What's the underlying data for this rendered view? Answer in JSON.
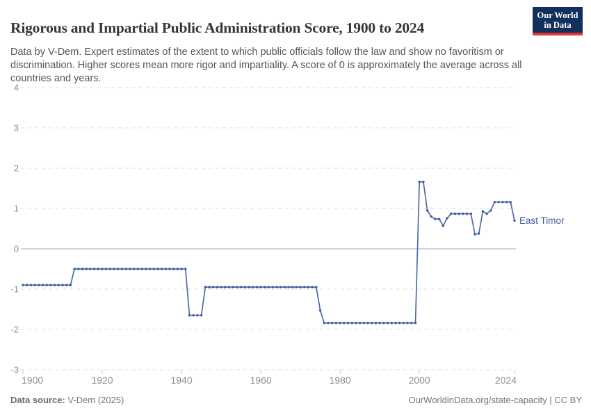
{
  "header": {
    "title": "Rigorous and Impartial Public Administration Score, 1900 to 2024",
    "subtitle": "Data by V-Dem. Expert estimates of the extent to which public officials follow the law and show no favoritism or discrimination. Higher scores mean more rigor and impartiality. A score of 0 is approximately the average across all countries and years.",
    "logo": {
      "line1": "Our World",
      "line2": "in Data",
      "bg_color": "#12305c",
      "accent_color": "#e0362c"
    }
  },
  "chart_data": {
    "type": "line",
    "title": "Rigorous and Impartial Public Administration Score, 1900 to 2024",
    "xlabel": "",
    "ylabel": "",
    "xlim": [
      1900,
      2024
    ],
    "ylim": [
      -3,
      4
    ],
    "x_ticks": [
      1900,
      1920,
      1940,
      1960,
      1980,
      2000,
      2024
    ],
    "y_ticks": [
      4,
      3,
      2,
      1,
      0,
      -1,
      -2,
      -3
    ],
    "grid": true,
    "legend_position": "end-of-line-label",
    "series": [
      {
        "name": "East Timor",
        "start_year": 1900,
        "values": [
          -0.9,
          -0.9,
          -0.9,
          -0.9,
          -0.9,
          -0.9,
          -0.9,
          -0.9,
          -0.9,
          -0.9,
          -0.9,
          -0.9,
          -0.9,
          -0.5,
          -0.5,
          -0.5,
          -0.5,
          -0.5,
          -0.5,
          -0.5,
          -0.5,
          -0.5,
          -0.5,
          -0.5,
          -0.5,
          -0.5,
          -0.5,
          -0.5,
          -0.5,
          -0.5,
          -0.5,
          -0.5,
          -0.5,
          -0.5,
          -0.5,
          -0.5,
          -0.5,
          -0.5,
          -0.5,
          -0.5,
          -0.5,
          -0.5,
          -1.65,
          -1.65,
          -1.65,
          -1.65,
          -0.95,
          -0.95,
          -0.95,
          -0.95,
          -0.95,
          -0.95,
          -0.95,
          -0.95,
          -0.95,
          -0.95,
          -0.95,
          -0.95,
          -0.95,
          -0.95,
          -0.95,
          -0.95,
          -0.95,
          -0.95,
          -0.95,
          -0.95,
          -0.95,
          -0.95,
          -0.95,
          -0.95,
          -0.95,
          -0.95,
          -0.95,
          -0.95,
          -0.95,
          -1.53,
          -1.84,
          -1.84,
          -1.84,
          -1.84,
          -1.84,
          -1.84,
          -1.84,
          -1.84,
          -1.84,
          -1.84,
          -1.84,
          -1.84,
          -1.84,
          -1.84,
          -1.84,
          -1.84,
          -1.84,
          -1.84,
          -1.84,
          -1.84,
          -1.84,
          -1.84,
          -1.84,
          -1.84,
          1.66,
          1.66,
          0.95,
          0.8,
          0.74,
          0.74,
          0.57,
          0.76,
          0.87,
          0.87,
          0.87,
          0.87,
          0.87,
          0.87,
          0.36,
          0.38,
          0.93,
          0.87,
          0.95,
          1.16,
          1.16,
          1.16,
          1.16,
          1.16,
          0.7
        ]
      }
    ],
    "style": {
      "line_color": "#4d6bac",
      "marker_color": "#3a5c9e",
      "entity_label_color": "#3d5c9b",
      "grid_color": "#dcdcdc",
      "zero_line_color": "#a8a8a8",
      "tick_label_color": "#8e8e8e"
    }
  },
  "footer": {
    "source_label": "Data source:",
    "source_value": " V-Dem (2025)",
    "right_text": "OurWorldinData.org/state-capacity | CC BY"
  }
}
